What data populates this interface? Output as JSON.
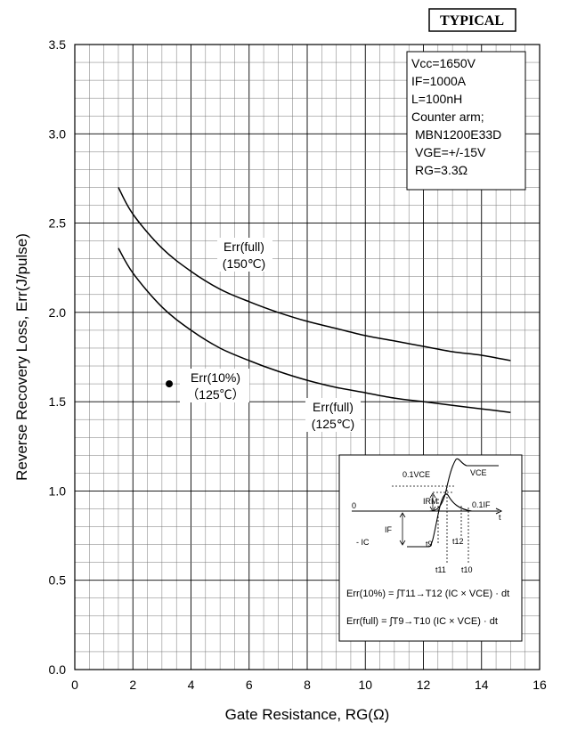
{
  "badge": "TYPICAL",
  "chart_data": {
    "type": "line",
    "xlabel": "Gate Resistance, RG(Ω)",
    "ylabel": "Reverse Recovery Loss, Err(J/pulse)",
    "xlim": [
      0,
      16
    ],
    "ylim": [
      0,
      3.5
    ],
    "xticks": [
      0,
      2,
      4,
      6,
      8,
      10,
      12,
      14,
      16
    ],
    "yticks": [
      0.0,
      0.5,
      1.0,
      1.5,
      2.0,
      2.5,
      3.0,
      3.5
    ],
    "xtick_labels": [
      "0",
      "2",
      "4",
      "6",
      "8",
      "10",
      "12",
      "14",
      "16"
    ],
    "ytick_labels": [
      "0.0",
      "0.5",
      "1.0",
      "1.5",
      "2.0",
      "2.5",
      "3.0",
      "3.5"
    ],
    "grid": true,
    "series": [
      {
        "label_lines": [
          "Err(full)",
          "(150℃)"
        ],
        "x": [
          1.5,
          2,
          3,
          4,
          5,
          6,
          7,
          8,
          9,
          10,
          11,
          12,
          13,
          14,
          15
        ],
        "y": [
          2.7,
          2.55,
          2.36,
          2.23,
          2.13,
          2.06,
          2.0,
          1.95,
          1.91,
          1.87,
          1.84,
          1.81,
          1.78,
          1.76,
          1.73
        ]
      },
      {
        "label_lines": [
          "Err(full)",
          "(125℃)"
        ],
        "x": [
          1.5,
          2,
          3,
          4,
          5,
          6,
          7,
          8,
          9,
          10,
          11,
          12,
          13,
          14,
          15
        ],
        "y": [
          2.36,
          2.22,
          2.03,
          1.9,
          1.8,
          1.73,
          1.67,
          1.62,
          1.58,
          1.55,
          1.52,
          1.5,
          1.48,
          1.46,
          1.44
        ]
      }
    ],
    "points": [
      {
        "label_lines": [
          "Err(10%)",
          "（125℃）"
        ],
        "x": 3.25,
        "y": 1.6
      }
    ]
  },
  "conditions": [
    "Vcc=1650V",
    "IF=1000A",
    "L=100nH",
    "Counter arm;",
    "MBN1200E33D",
    "VGE=+/-15V",
    "RG=3.3Ω"
  ],
  "inset": {
    "labels": {
      "vce_top": "VCE",
      "vce01": "0.1VCE",
      "irm": "IRM",
      "zero": "0",
      "t": "t",
      "if01": "0.1IF",
      "if": "IF",
      "ic": "- IC",
      "t9": "t9",
      "t12": "t12",
      "t11": "t11",
      "t10": "t10"
    },
    "formula_10": "Err(10%) = ∫T11→T12 (IC × VCE) · dt",
    "formula_full": "Err(full) = ∫T9→T10 (IC × VCE) · dt"
  }
}
